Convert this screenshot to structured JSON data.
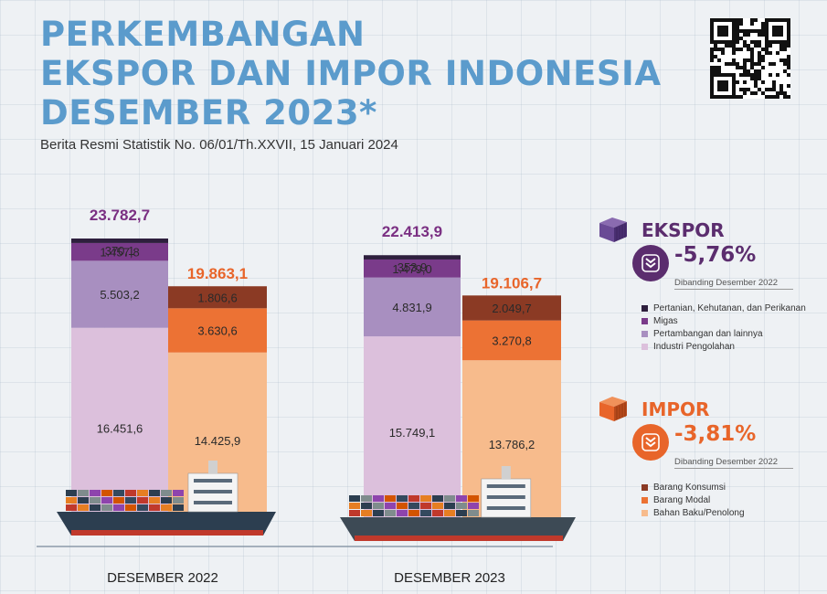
{
  "title_lines": [
    "PERKEMBANGAN",
    "EKSPOR DAN IMPOR INDONESIA",
    "DESEMBER 2023*"
  ],
  "subtitle": "Berita Resmi Statistik No. 06/01/Th.XXVII, 15 Januari 2024",
  "chart_data": {
    "type": "bar",
    "stacked": true,
    "categories": [
      "DESEMBER 2022",
      "DESEMBER 2023"
    ],
    "unit": "",
    "groups": [
      {
        "name": "EKSPOR",
        "totals": [
          23782.7,
          22413.9
        ],
        "total_labels": [
          "23.782,7",
          "22.413,9"
        ],
        "series": [
          {
            "name": "Industri Pengolahan",
            "values": [
              16451.6,
              15749.1
            ],
            "labels": [
              "16.451,6",
              "15.749,1"
            ],
            "color": "#dcc0dc"
          },
          {
            "name": "Pertambangan dan lainnya",
            "values": [
              5503.2,
              4831.9
            ],
            "labels": [
              "5.503,2",
              "4.831,9"
            ],
            "color": "#a88fc0"
          },
          {
            "name": "Migas",
            "values": [
              1457.8,
              1479.0
            ],
            "labels": [
              "1.457,8",
              "1.479,0"
            ],
            "color": "#7a3b8a"
          },
          {
            "name": "Pertanian, Kehutanan, dan Perikanan",
            "values": [
              370.1,
              353.9
            ],
            "labels": [
              "370,1",
              "353,9"
            ],
            "color": "#2e1f3d"
          }
        ]
      },
      {
        "name": "IMPOR",
        "totals": [
          19863.1,
          19106.7
        ],
        "total_labels": [
          "19.863,1",
          "19.106,7"
        ],
        "series": [
          {
            "name": "Bahan Baku/Penolong",
            "values": [
              14425.9,
              13786.2
            ],
            "labels": [
              "14.425,9",
              "13.786,2"
            ],
            "color": "#f7bb8c"
          },
          {
            "name": "Barang Modal",
            "values": [
              3630.6,
              3270.8
            ],
            "labels": [
              "3.630,6",
              "3.270,8"
            ],
            "color": "#ec7234"
          },
          {
            "name": "Barang Konsumsi",
            "values": [
              1806.6,
              2049.7
            ],
            "labels": [
              "1.806,6",
              "2.049,7"
            ],
            "color": "#8b3a24"
          }
        ]
      }
    ]
  },
  "ekspor": {
    "name": "EKSPOR",
    "change": "-5,76%",
    "compare_text": "Dibanding Desember 2022",
    "color": "#5b2d6e",
    "icon": "container-cube-icon",
    "legend": [
      {
        "label": "Pertanian, Kehutanan, dan Perikanan",
        "color": "#2e1f3d"
      },
      {
        "label": "Migas",
        "color": "#7a3b8a"
      },
      {
        "label": "Pertambangan dan lainnya",
        "color": "#a88fc0"
      },
      {
        "label": "Industri Pengolahan",
        "color": "#dcc0dc"
      }
    ]
  },
  "impor": {
    "name": "IMPOR",
    "change": "-3,81%",
    "compare_text": "Dibanding Desember 2022",
    "color": "#e8652a",
    "icon": "container-cube-icon",
    "legend": [
      {
        "label": "Barang Konsumsi",
        "color": "#8b3a24"
      },
      {
        "label": "Barang Modal",
        "color": "#ec7234"
      },
      {
        "label": "Bahan Baku/Penolong",
        "color": "#f7bb8c"
      }
    ]
  },
  "colors": {
    "title": "#5b9bcc",
    "ekspor_total": "#7a2f82",
    "impor_total": "#e8652a"
  }
}
